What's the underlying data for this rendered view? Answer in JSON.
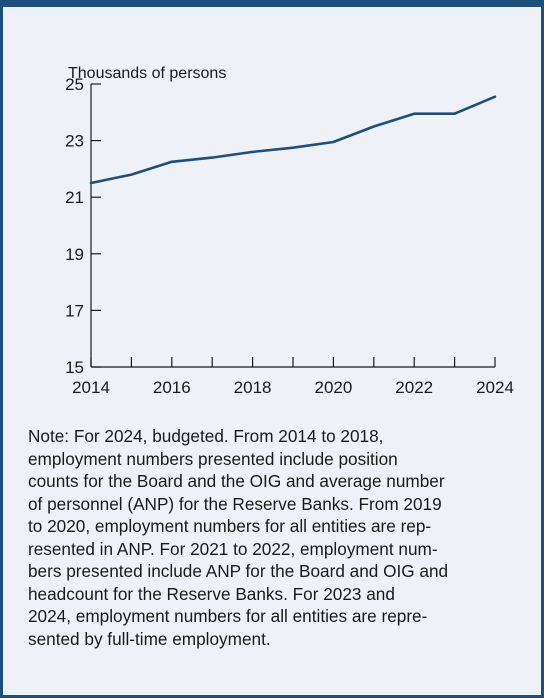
{
  "colors": {
    "frame": "#1c4f7c",
    "background": "#eef2f8",
    "line": "#1c4f7c"
  },
  "chart_data": {
    "type": "line",
    "title": "",
    "xlabel": "",
    "ylabel": "Thousands of persons",
    "x": [
      2014,
      2015,
      2016,
      2017,
      2018,
      2019,
      2020,
      2021,
      2022,
      2023,
      2024
    ],
    "xlim": [
      2014,
      2024
    ],
    "ylim": [
      15,
      25
    ],
    "x_tick_labels": [
      "2014",
      "2016",
      "2018",
      "2020",
      "2022",
      "2024"
    ],
    "y_tick_labels": [
      "15",
      "17",
      "19",
      "21",
      "23",
      "25"
    ],
    "series": [
      {
        "values": [
          21.5,
          21.8,
          22.25,
          22.4,
          22.6,
          22.75,
          22.95,
          23.5,
          23.95,
          23.95,
          24.55
        ]
      }
    ],
    "grid": false
  },
  "note": "Note: For 2024, budgeted. From 2014 to 2018,\nemployment numbers presented include position\ncounts for the Board and the OIG and average number\nof personnel (ANP) for the Reserve Banks. From 2019\nto 2020, employment numbers for all entities are rep-\nresented in ANP. For 2021 to 2022, employment num-\nbers presented include ANP for the Board and OIG and\nheadcount for the Reserve Banks. For 2023 and\n2024, employment numbers for all entities are repre-\nsented by full-time employment."
}
